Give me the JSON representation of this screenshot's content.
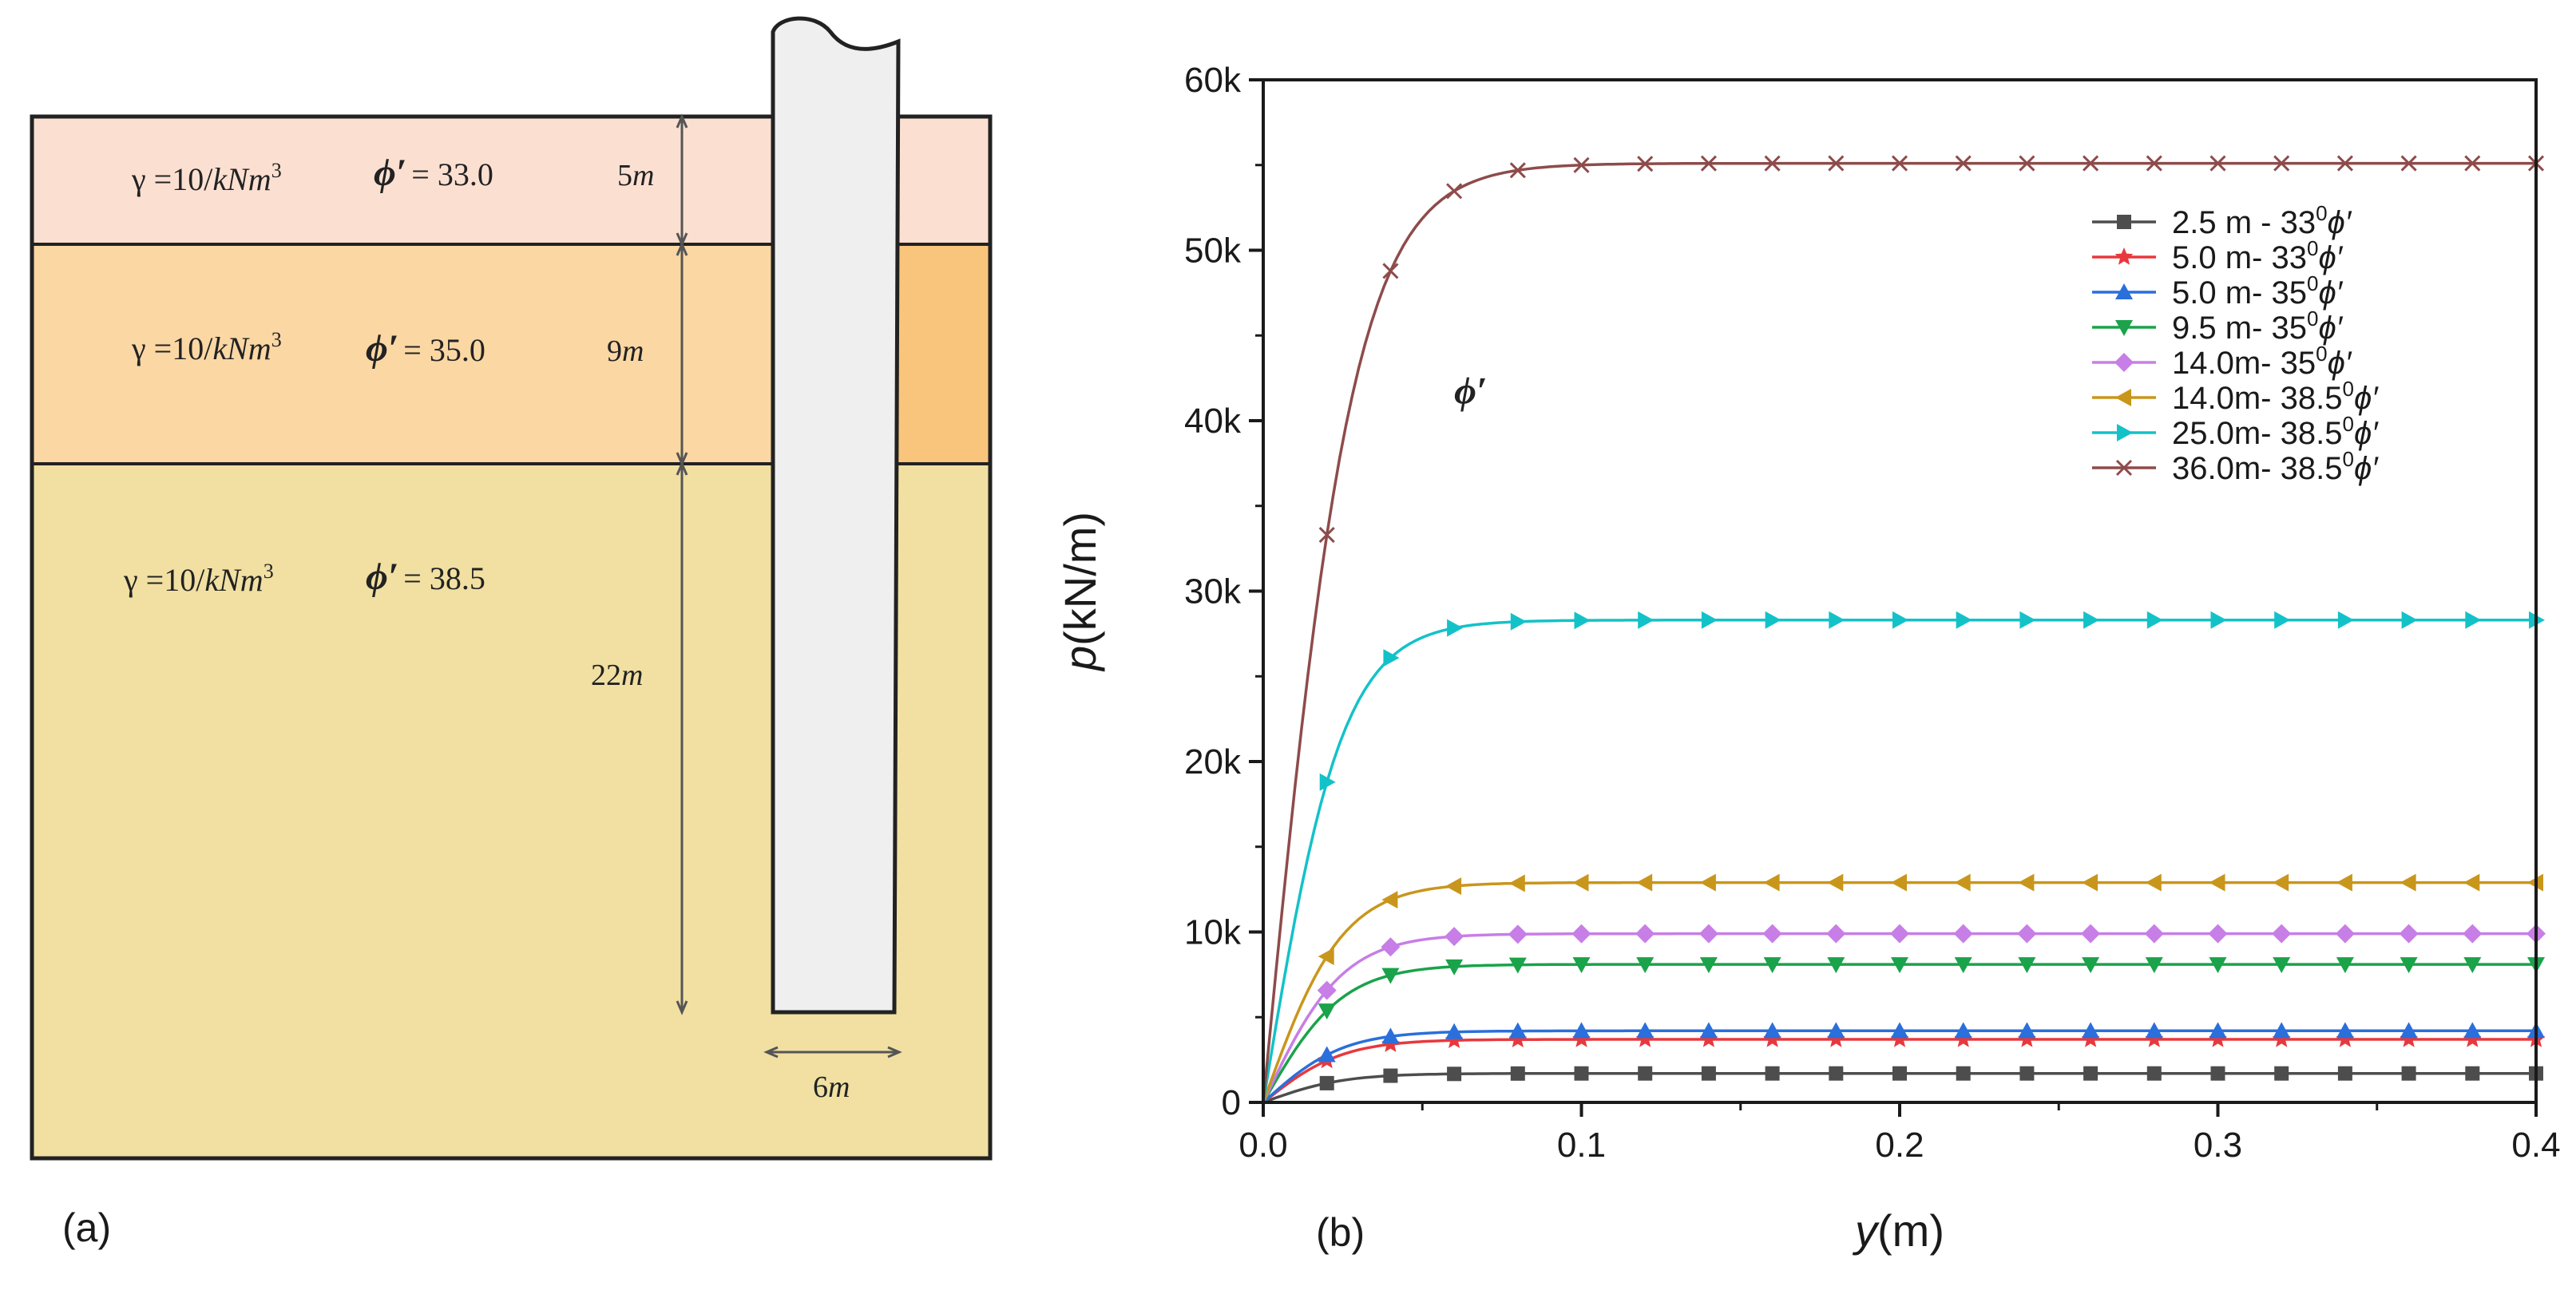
{
  "panel_a": {
    "label": "(a)",
    "layers": [
      {
        "gamma": "γ =10/",
        "unit": "kNm",
        "exp": "3",
        "phi_symbol": "ϕ′",
        "phi_value": "= 33.0",
        "depth": "5",
        "depth_unit": "m",
        "color": "#fbe0d2"
      },
      {
        "gamma": "γ =10/",
        "unit": "kNm",
        "exp": "3",
        "phi_symbol": "ϕ′",
        "phi_value": "= 35.0",
        "depth": "9",
        "depth_unit": "m",
        "color": "#fbd7a4"
      },
      {
        "gamma": "γ =10/",
        "unit": "kNm",
        "exp": "3",
        "phi_symbol": "ϕ′",
        "phi_value": "= 38.5",
        "depth": "22",
        "depth_unit": "m",
        "color": "#f1e0a2"
      }
    ],
    "pile_width": "6",
    "pile_width_unit": "m",
    "colors": {
      "pile": "#efefef",
      "outline": "#222222",
      "layer2_right": "#f9c57c"
    }
  },
  "chart_data": {
    "type": "line",
    "panel_label": "(b)",
    "xlabel": "y",
    "xlabel_unit": "(m)",
    "ylabel": "p",
    "ylabel_unit": "(kN/m)",
    "xlim": [
      0,
      0.4
    ],
    "ylim": [
      0,
      60000
    ],
    "xticks": [
      0.0,
      0.1,
      0.2,
      0.3,
      0.4
    ],
    "xtick_labels": [
      "0.0",
      "0.1",
      "0.2",
      "0.3",
      "0.4"
    ],
    "yticks": [
      0,
      10000,
      20000,
      30000,
      40000,
      50000,
      60000
    ],
    "ytick_labels": [
      "0",
      "10k",
      "20k",
      "30k",
      "40k",
      "50k",
      "60k"
    ],
    "annotation": "ϕ′",
    "annotation_at": [
      0.06,
      41000
    ],
    "legend_position": "top-right",
    "x": [
      0,
      0.02,
      0.04,
      0.06,
      0.08,
      0.1,
      0.12,
      0.14,
      0.16,
      0.18,
      0.2,
      0.22,
      0.24,
      0.26,
      0.28,
      0.3,
      0.32,
      0.34,
      0.36,
      0.38,
      0.4
    ],
    "series": [
      {
        "name": "2.5 m - 33",
        "sup": "0",
        "suffix": "ϕ′",
        "color": "#4d4d4d",
        "marker": "square",
        "pu": 1700,
        "k": 40
      },
      {
        "name": "5.0 m- 33",
        "sup": "0",
        "suffix": "ϕ′",
        "color": "#e8383d",
        "marker": "star",
        "pu": 3700,
        "k": 40
      },
      {
        "name": "5.0 m- 35",
        "sup": "0",
        "suffix": "ϕ′",
        "color": "#2a6fdb",
        "marker": "triangle-up",
        "pu": 4200,
        "k": 40
      },
      {
        "name": "9.5 m- 35",
        "sup": "0",
        "suffix": "ϕ′",
        "color": "#1aa34a",
        "marker": "triangle-down",
        "pu": 8100,
        "k": 40
      },
      {
        "name": "14.0m- 35",
        "sup": "0",
        "suffix": "ϕ′",
        "color": "#c77ee6",
        "marker": "diamond",
        "pu": 9900,
        "k": 40
      },
      {
        "name": "14.0m- 38.5",
        "sup": "0",
        "suffix": "ϕ′",
        "color": "#c9961c",
        "marker": "triangle-left",
        "pu": 12900,
        "k": 40
      },
      {
        "name": "25.0m- 38.5",
        "sup": "0",
        "suffix": "ϕ′",
        "color": "#13c2c8",
        "marker": "triangle-right",
        "pu": 28300,
        "k": 40
      },
      {
        "name": "36.0m- 38.5",
        "sup": "0",
        "suffix": "ϕ′",
        "color": "#8e4b4b",
        "marker": "x",
        "pu": 55100,
        "k": 35
      }
    ]
  }
}
